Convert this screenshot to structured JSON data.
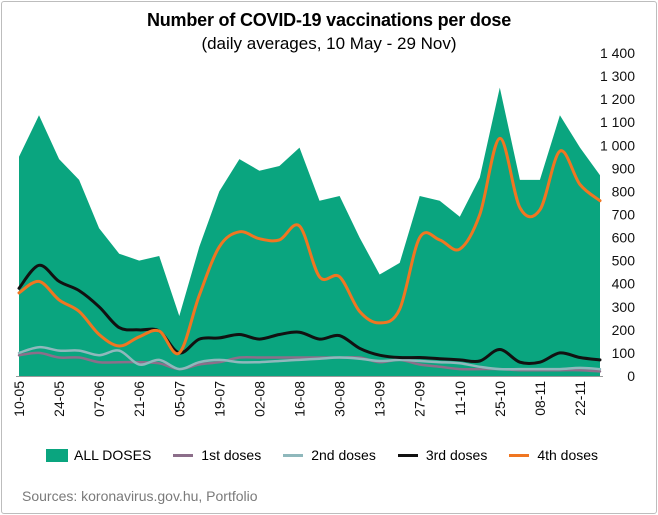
{
  "chart_data": {
    "type": "area",
    "title": "Number of COVID-19 vaccinations per dose",
    "subtitle": "(daily averages, 10 May - 29 Nov)",
    "source": "Sources: koronavirus.gov.hu, Portfolio",
    "x_tick_labels": [
      "10-05",
      "24-05",
      "07-06",
      "21-06",
      "05-07",
      "19-07",
      "02-08",
      "16-08",
      "30-08",
      "13-09",
      "27-09",
      "11-10",
      "25-10",
      "08-11",
      "22-11"
    ],
    "ylim": [
      0,
      1400
    ],
    "y_ticks": [
      0,
      100,
      200,
      300,
      400,
      500,
      600,
      700,
      800,
      900,
      1000,
      1100,
      1200,
      1300,
      1400
    ],
    "y_tick_labels": [
      "0",
      "100",
      "200",
      "300",
      "400",
      "500",
      "600",
      "700",
      "800",
      "900",
      "1 000",
      "1 100",
      "1 200",
      "1 300",
      "1 400"
    ],
    "grid": false,
    "legend_position": "bottom",
    "series": [
      {
        "name": "ALL DOSES",
        "kind": "area",
        "color": "#0aa57f",
        "values": [
          950,
          1130,
          940,
          850,
          640,
          530,
          500,
          520,
          260,
          560,
          800,
          940,
          890,
          910,
          990,
          760,
          780,
          600,
          440,
          490,
          780,
          760,
          690,
          860,
          1250,
          850,
          850,
          1130,
          990,
          870
        ]
      },
      {
        "name": "1st doses",
        "kind": "line",
        "color": "#8c6e8a",
        "values": [
          90,
          100,
          80,
          80,
          60,
          60,
          60,
          55,
          30,
          50,
          60,
          80,
          80,
          80,
          80,
          80,
          80,
          80,
          60,
          70,
          50,
          40,
          30,
          30,
          30,
          25,
          25,
          25,
          25,
          20
        ]
      },
      {
        "name": "2nd doses",
        "kind": "line",
        "color": "#8fb8bc",
        "values": [
          100,
          125,
          110,
          110,
          90,
          110,
          50,
          70,
          30,
          60,
          70,
          60,
          60,
          65,
          70,
          75,
          80,
          75,
          65,
          70,
          65,
          60,
          55,
          40,
          30,
          30,
          30,
          30,
          35,
          30
        ]
      },
      {
        "name": "3rd doses",
        "kind": "line",
        "color": "#111111",
        "values": [
          380,
          480,
          410,
          370,
          300,
          210,
          200,
          195,
          100,
          160,
          165,
          180,
          160,
          180,
          190,
          160,
          175,
          120,
          90,
          80,
          80,
          75,
          70,
          65,
          115,
          60,
          60,
          100,
          80,
          70
        ]
      },
      {
        "name": "4th doses",
        "kind": "line",
        "color": "#f07621",
        "values": [
          360,
          410,
          330,
          280,
          180,
          130,
          170,
          195,
          100,
          350,
          560,
          625,
          595,
          590,
          650,
          430,
          430,
          280,
          230,
          290,
          600,
          590,
          550,
          700,
          1030,
          730,
          720,
          975,
          830,
          760
        ]
      }
    ]
  }
}
